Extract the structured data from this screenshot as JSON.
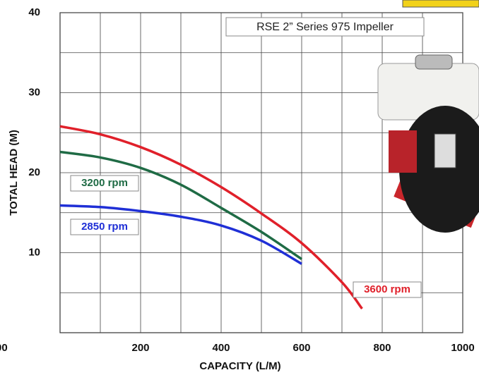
{
  "chart_data": {
    "type": "line",
    "annotation": "RSE 2” Series 975 Impeller",
    "x_label": "CAPACITY (L/M)",
    "y_label": "TOTAL HEAD (M)",
    "edge_text": "00",
    "xlim": [
      0,
      1000
    ],
    "ylim": [
      0,
      40
    ],
    "xticks": [
      200,
      400,
      600,
      800,
      1000
    ],
    "minor_xticks": [
      100,
      300,
      500,
      700,
      900
    ],
    "yticks": [
      10,
      20,
      30,
      40
    ],
    "minor_yticks": [
      5,
      15,
      25,
      35
    ],
    "grid": true,
    "series": [
      {
        "name": "3600 rpm",
        "color": "#e0202a",
        "x": [
          0,
          100,
          200,
          300,
          400,
          500,
          600,
          700,
          750
        ],
        "values": [
          25.8,
          24.8,
          23.2,
          21,
          18.2,
          14.9,
          11.2,
          6.3,
          3.0
        ]
      },
      {
        "name": "3200 rpm",
        "color": "#1f6b45",
        "x": [
          0,
          100,
          200,
          300,
          400,
          500,
          600
        ],
        "values": [
          22.6,
          21.9,
          20.6,
          18.5,
          15.6,
          12.6,
          9.2
        ]
      },
      {
        "name": "2850 rpm",
        "color": "#1f2fd6",
        "x": [
          0,
          100,
          200,
          300,
          400,
          500,
          600
        ],
        "values": [
          15.9,
          15.7,
          15.2,
          14.5,
          13.4,
          11.5,
          8.6
        ]
      }
    ]
  }
}
